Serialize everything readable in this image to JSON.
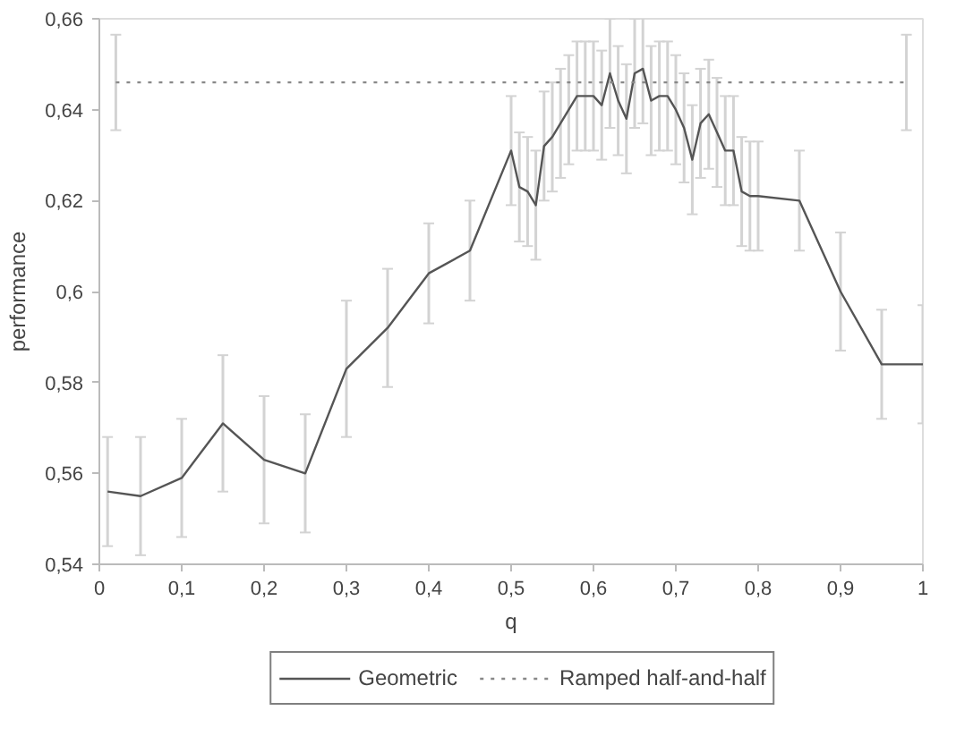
{
  "chart_data": {
    "type": "line",
    "xlabel": "q",
    "ylabel": "performance",
    "xlim": [
      0,
      1
    ],
    "ylim": [
      0.54,
      0.66
    ],
    "xticks": [
      0,
      {
        "value": 0.1,
        "label": "0,1"
      },
      {
        "value": 0.2,
        "label": "0,2"
      },
      {
        "value": 0.3,
        "label": "0,3"
      },
      {
        "value": 0.4,
        "label": "0,4"
      },
      {
        "value": 0.5,
        "label": "0,5"
      },
      {
        "value": 0.6,
        "label": "0,6"
      },
      {
        "value": 0.7,
        "label": "0,7"
      },
      {
        "value": 0.8,
        "label": "0,8"
      },
      {
        "value": 0.9,
        "label": "0,9"
      },
      1
    ],
    "yticks": [
      {
        "value": 0.54,
        "label": "0,54"
      },
      {
        "value": 0.56,
        "label": "0,56"
      },
      {
        "value": 0.58,
        "label": "0,58"
      },
      {
        "value": 0.6,
        "label": "0,6"
      },
      {
        "value": 0.62,
        "label": "0,62"
      },
      {
        "value": 0.64,
        "label": "0,64"
      },
      {
        "value": 0.66,
        "label": "0,66"
      }
    ],
    "grid": false,
    "legend": "bottom",
    "marker": "none",
    "series": [
      {
        "name": "Geometric",
        "color": "#555555",
        "line_style": "solid",
        "x": [
          0.01,
          0.05,
          0.1,
          0.15,
          0.2,
          0.25,
          0.3,
          0.35,
          0.4,
          0.45,
          0.5,
          0.51,
          0.52,
          0.53,
          0.54,
          0.55,
          0.56,
          0.57,
          0.58,
          0.59,
          0.6,
          0.61,
          0.62,
          0.63,
          0.64,
          0.65,
          0.66,
          0.67,
          0.68,
          0.69,
          0.7,
          0.71,
          0.72,
          0.73,
          0.74,
          0.75,
          0.76,
          0.77,
          0.78,
          0.79,
          0.8,
          0.85,
          0.9,
          0.95,
          1.0
        ],
        "values": [
          0.556,
          0.555,
          0.559,
          0.571,
          0.563,
          0.56,
          0.583,
          0.592,
          0.604,
          0.609,
          0.631,
          0.623,
          0.622,
          0.619,
          0.632,
          0.634,
          0.637,
          0.64,
          0.643,
          0.643,
          0.643,
          0.641,
          0.648,
          0.642,
          0.638,
          0.648,
          0.649,
          0.642,
          0.643,
          0.643,
          0.64,
          0.636,
          0.629,
          0.637,
          0.639,
          0.635,
          0.631,
          0.631,
          0.622,
          0.621,
          0.621,
          0.62,
          0.6,
          0.584,
          0.584
        ],
        "errors": [
          0.012,
          0.013,
          0.013,
          0.015,
          0.014,
          0.013,
          0.015,
          0.013,
          0.011,
          0.011,
          0.012,
          0.012,
          0.012,
          0.012,
          0.012,
          0.012,
          0.012,
          0.012,
          0.012,
          0.012,
          0.012,
          0.012,
          0.012,
          0.012,
          0.012,
          0.012,
          0.012,
          0.012,
          0.012,
          0.012,
          0.012,
          0.012,
          0.012,
          0.012,
          0.012,
          0.012,
          0.012,
          0.012,
          0.012,
          0.012,
          0.012,
          0.011,
          0.013,
          0.012,
          0.013
        ]
      },
      {
        "name": "Ramped half-and-half",
        "color": "#888888",
        "line_style": "dotted",
        "x": [
          0.02,
          0.98
        ],
        "values": [
          0.646,
          0.646
        ],
        "errors": [
          0.0105,
          0.0105
        ]
      }
    ]
  }
}
